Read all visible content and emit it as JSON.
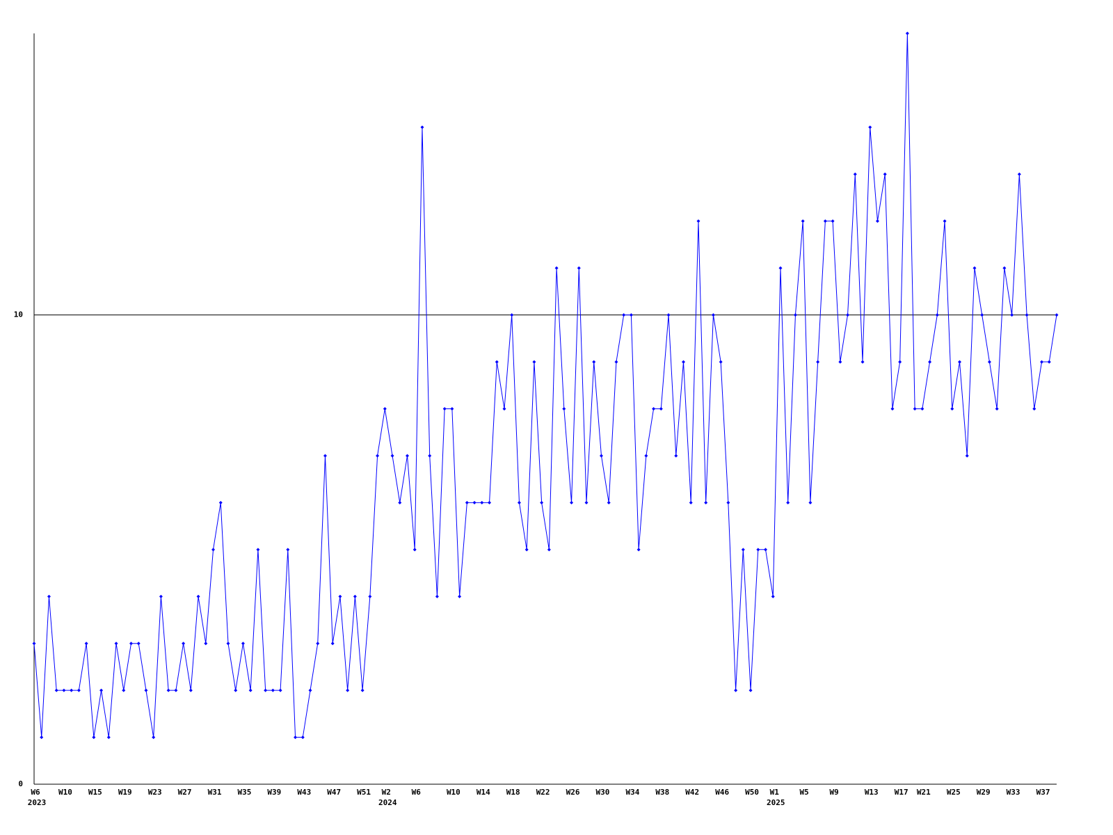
{
  "chart_data": {
    "type": "line",
    "categories": [
      "W6",
      null,
      null,
      null,
      "W10",
      null,
      null,
      null,
      "W15",
      null,
      null,
      null,
      "W19",
      null,
      null,
      null,
      "W23",
      null,
      null,
      null,
      "W27",
      null,
      null,
      null,
      "W31",
      null,
      null,
      null,
      "W35",
      null,
      null,
      null,
      "W39",
      null,
      null,
      null,
      "W43",
      null,
      null,
      null,
      "W47",
      null,
      null,
      null,
      "W51",
      null,
      null,
      "W2",
      null,
      null,
      null,
      "W6",
      null,
      null,
      null,
      null,
      "W10",
      null,
      null,
      null,
      "W14",
      null,
      null,
      null,
      "W18",
      null,
      null,
      null,
      "W22",
      null,
      null,
      null,
      "W26",
      null,
      null,
      null,
      "W30",
      null,
      null,
      null,
      "W34",
      null,
      null,
      null,
      "W38",
      null,
      null,
      null,
      "W42",
      null,
      null,
      null,
      "W46",
      null,
      null,
      null,
      "W50",
      null,
      null,
      "W1",
      null,
      null,
      null,
      "W5",
      null,
      null,
      null,
      "W9",
      null,
      null,
      null,
      null,
      "W13",
      null,
      null,
      null,
      "W17",
      null,
      null,
      "W21",
      null,
      null,
      null,
      "W25",
      null,
      null,
      null,
      "W29",
      null,
      null,
      null,
      "W33",
      null,
      null,
      null,
      "W37",
      null,
      null
    ],
    "years": [
      "2023",
      null,
      null,
      null,
      null,
      null,
      null,
      null,
      null,
      null,
      null,
      null,
      null,
      null,
      null,
      null,
      null,
      null,
      null,
      null,
      null,
      null,
      null,
      null,
      null,
      null,
      null,
      null,
      null,
      null,
      null,
      null,
      null,
      null,
      null,
      null,
      null,
      null,
      null,
      null,
      null,
      null,
      null,
      null,
      null,
      null,
      null,
      "2024",
      null,
      null,
      null,
      null,
      null,
      null,
      null,
      null,
      null,
      null,
      null,
      null,
      null,
      null,
      null,
      null,
      null,
      null,
      null,
      null,
      null,
      null,
      null,
      null,
      null,
      null,
      null,
      null,
      null,
      null,
      null,
      null,
      null,
      null,
      null,
      null,
      null,
      null,
      null,
      null,
      null,
      null,
      null,
      null,
      null,
      null,
      null,
      null,
      null,
      null,
      null,
      "2025",
      null,
      null,
      null,
      null,
      null,
      null,
      null,
      null,
      null,
      null,
      null,
      null,
      null,
      null,
      null,
      null,
      null,
      null,
      null,
      null,
      null,
      null,
      null,
      null,
      null,
      null,
      null,
      null,
      null,
      null,
      null,
      null,
      null,
      null,
      null,
      null,
      null
    ],
    "series": [
      {
        "color": "#0000ff",
        "values": [
          3,
          1,
          4,
          2,
          2,
          2,
          2,
          3,
          1,
          2,
          1,
          3,
          2,
          3,
          3,
          2,
          1,
          4,
          2,
          2,
          3,
          2,
          4,
          3,
          5,
          6,
          3,
          2,
          3,
          2,
          5,
          2,
          2,
          2,
          5,
          1,
          1,
          2,
          3,
          7,
          3,
          4,
          2,
          4,
          2,
          4,
          7,
          8,
          7,
          6,
          7,
          5,
          14,
          7,
          4,
          8,
          8,
          4,
          6,
          6,
          6,
          6,
          9,
          8,
          10,
          6,
          5,
          9,
          6,
          5,
          11,
          8,
          6,
          11,
          6,
          9,
          7,
          6,
          9,
          10,
          10,
          5,
          7,
          8,
          8,
          10,
          7,
          9,
          6,
          12,
          6,
          10,
          9,
          6,
          2,
          5,
          2,
          5,
          5,
          4,
          11,
          6,
          10,
          12,
          6,
          9,
          12,
          12,
          9,
          10,
          13,
          9,
          14,
          12,
          13,
          8,
          9,
          16,
          8,
          8,
          9,
          10,
          12,
          8,
          9,
          7,
          11,
          10,
          9,
          8,
          11,
          10,
          13,
          10,
          8,
          9,
          9,
          10
        ]
      }
    ],
    "ylim": [
      0,
      16
    ],
    "yticks": [
      0,
      10
    ],
    "grid": true
  }
}
